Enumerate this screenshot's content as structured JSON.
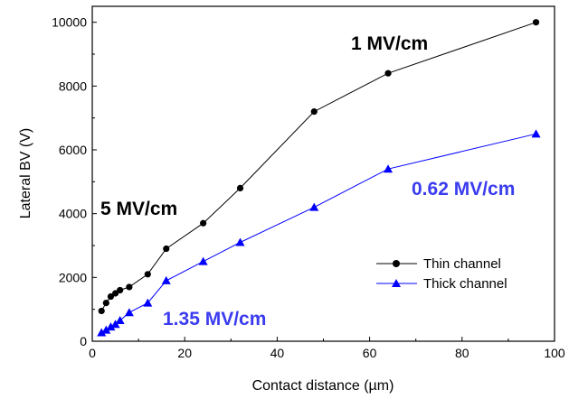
{
  "chart_data": {
    "type": "line",
    "xlabel": "Contact distance (µm)",
    "ylabel": "Lateral BV (V)",
    "xlim": [
      0,
      100
    ],
    "ylim": [
      0,
      10500
    ],
    "x_ticks": [
      0,
      20,
      40,
      60,
      80,
      100
    ],
    "y_ticks": [
      0,
      2000,
      4000,
      6000,
      8000,
      10000
    ],
    "grid": false,
    "legend_position": "bottom-right",
    "series": [
      {
        "name": "Thin channel",
        "color": "#000000",
        "marker": "circle",
        "x": [
          2,
          3,
          4,
          5,
          6,
          8,
          12,
          16,
          24,
          32,
          48,
          64,
          96
        ],
        "y": [
          950,
          1200,
          1400,
          1500,
          1600,
          1700,
          2100,
          2900,
          3700,
          4800,
          7200,
          8400,
          10000
        ]
      },
      {
        "name": "Thick channel",
        "color": "#0000FF",
        "marker": "triangle",
        "x": [
          2,
          3,
          4,
          5,
          6,
          8,
          12,
          16,
          24,
          32,
          48,
          64,
          96
        ],
        "y": [
          270,
          350,
          450,
          530,
          650,
          900,
          1200,
          1900,
          2500,
          3100,
          4200,
          5400,
          6500
        ]
      }
    ],
    "annotations": [
      {
        "text": "1 MV/cm",
        "color": "#000000"
      },
      {
        "text": "5 MV/cm",
        "color": "#000000"
      },
      {
        "text": "0.62 MV/cm",
        "color": "#3B3BF0"
      },
      {
        "text": "1.35 MV/cm",
        "color": "#3B3BF0"
      }
    ]
  }
}
